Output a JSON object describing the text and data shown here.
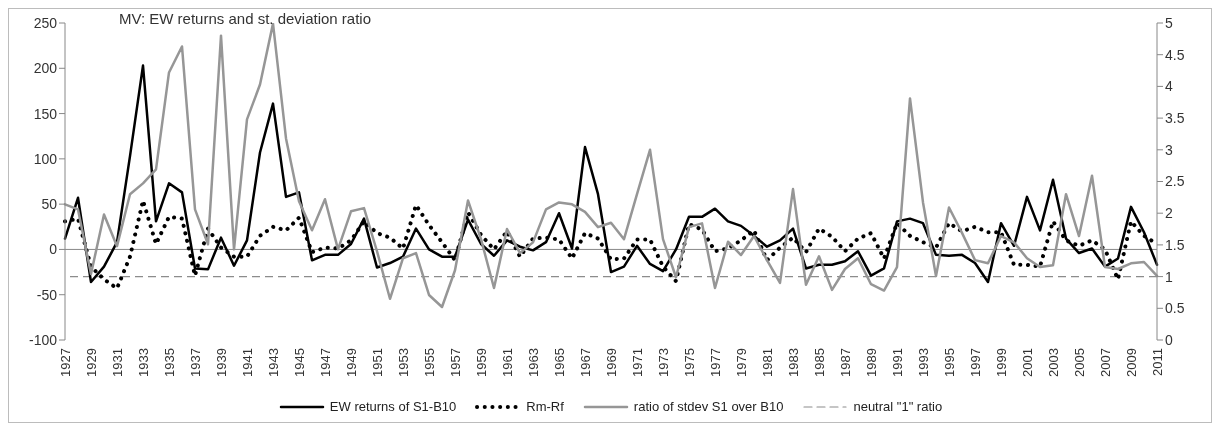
{
  "chart_data": {
    "type": "line",
    "title": "MV: EW returns and st. deviation ratio",
    "categories": [
      "1927",
      null,
      "1929",
      null,
      "1931",
      null,
      "1933",
      null,
      "1935",
      null,
      "1937",
      null,
      "1939",
      null,
      "1941",
      null,
      "1943",
      null,
      "1945",
      null,
      "1947",
      null,
      "1949",
      null,
      "1951",
      null,
      "1953",
      null,
      "1955",
      null,
      "1957",
      null,
      "1959",
      null,
      "1961",
      null,
      "1963",
      null,
      "1965",
      null,
      "1967",
      null,
      "1969",
      null,
      "1971",
      null,
      "1973",
      null,
      "1975",
      null,
      "1977",
      null,
      "1979",
      null,
      "1981",
      null,
      "1983",
      null,
      "1985",
      null,
      "1987",
      null,
      "1989",
      null,
      "1991",
      null,
      "1993",
      null,
      "1995",
      null,
      "1997",
      null,
      "1999",
      null,
      "2001",
      null,
      "2003",
      null,
      "2005",
      null,
      "2007",
      null,
      "2009",
      null,
      "2011"
    ],
    "series": [
      {
        "name": "EW returns of S1-B10",
        "color": "#000000",
        "line_style": "solid",
        "values": [
          12,
          57,
          -36,
          -19,
          8,
          103,
          203,
          31,
          73,
          63,
          -21,
          -22,
          13,
          -18,
          10,
          107,
          161,
          58,
          63,
          -12,
          -6,
          -6,
          6,
          34,
          -20,
          -15,
          -8,
          23,
          0,
          -8,
          -8,
          33,
          6,
          -7,
          10,
          3,
          -1,
          8,
          40,
          1,
          113,
          61,
          -25,
          -19,
          4,
          -16,
          -24,
          0,
          36,
          36,
          45,
          31,
          26,
          15,
          3,
          10,
          23,
          -21,
          -17,
          -17,
          -13,
          -2,
          -29,
          -21,
          31,
          34,
          29,
          -6,
          -7,
          -6,
          -15,
          -36,
          29,
          4,
          58,
          21,
          77,
          12,
          -4,
          1,
          -19,
          -10,
          47,
          19,
          -17
        ]
      },
      {
        "name": "Rm-Rf",
        "color": "#000000",
        "line_style": "dotted",
        "values": [
          31,
          34,
          -19,
          -33,
          -43,
          -8,
          54,
          6,
          36,
          34,
          -29,
          23,
          2,
          -8,
          -8,
          15,
          25,
          21,
          35,
          -3,
          2,
          1,
          10,
          31,
          18,
          13,
          1,
          49,
          27,
          8,
          -12,
          41,
          16,
          0,
          20,
          -8,
          12,
          13,
          11,
          -10,
          18,
          12,
          -11,
          -10,
          11,
          11,
          -19,
          -35,
          28,
          22,
          -2,
          1,
          10,
          21,
          -12,
          2,
          13,
          -3,
          23,
          14,
          -2,
          12,
          18,
          -10,
          29,
          15,
          8,
          2,
          29,
          20,
          25,
          19,
          19,
          -17,
          -17,
          -19,
          31,
          10,
          4,
          10,
          0,
          -33,
          31,
          15,
          6
        ]
      },
      {
        "name": "ratio of stdev S1 over B10",
        "color": "#969696",
        "line_style": "solid",
        "axis": "y2",
        "values": [
          2.14,
          2.06,
          1.04,
          1.98,
          1.48,
          2.3,
          2.47,
          2.69,
          4.22,
          4.63,
          2.06,
          1.51,
          4.8,
          1.43,
          3.48,
          4.03,
          4.99,
          3.18,
          2.19,
          1.73,
          2.22,
          1.43,
          2.03,
          2.08,
          1.4,
          0.65,
          1.29,
          1.37,
          0.71,
          0.52,
          1.1,
          2.2,
          1.59,
          0.82,
          1.75,
          1.37,
          1.54,
          2.06,
          2.17,
          2.14,
          2.02,
          1.78,
          1.85,
          1.59,
          2.3,
          3.0,
          1.59,
          0.99,
          1.78,
          1.84,
          0.82,
          1.55,
          1.34,
          1.64,
          1.26,
          0.9,
          2.38,
          0.87,
          1.32,
          0.79,
          1.12,
          1.29,
          0.88,
          0.78,
          1.15,
          3.81,
          2.17,
          1.01,
          2.09,
          1.69,
          1.26,
          1.21,
          1.64,
          1.54,
          1.29,
          1.15,
          1.18,
          2.3,
          1.64,
          2.59,
          1.15,
          1.12,
          1.21,
          1.23,
          1.01
        ]
      }
    ],
    "ref_lines": [
      {
        "axis": "y2",
        "value": 1,
        "label": "neutral \"1\" ratio",
        "color": "#8c8c8c",
        "line_style": "dashed"
      }
    ],
    "ylim": [
      -100,
      250
    ],
    "yticks": [
      -100,
      -50,
      0,
      50,
      100,
      150,
      200,
      250
    ],
    "y2lim": [
      0,
      5
    ],
    "y2ticks": [
      0,
      0.5,
      1,
      1.5,
      2,
      2.5,
      3,
      3.5,
      4,
      4.5,
      5
    ],
    "grid": false,
    "legend": "bottom",
    "marker": "none"
  }
}
